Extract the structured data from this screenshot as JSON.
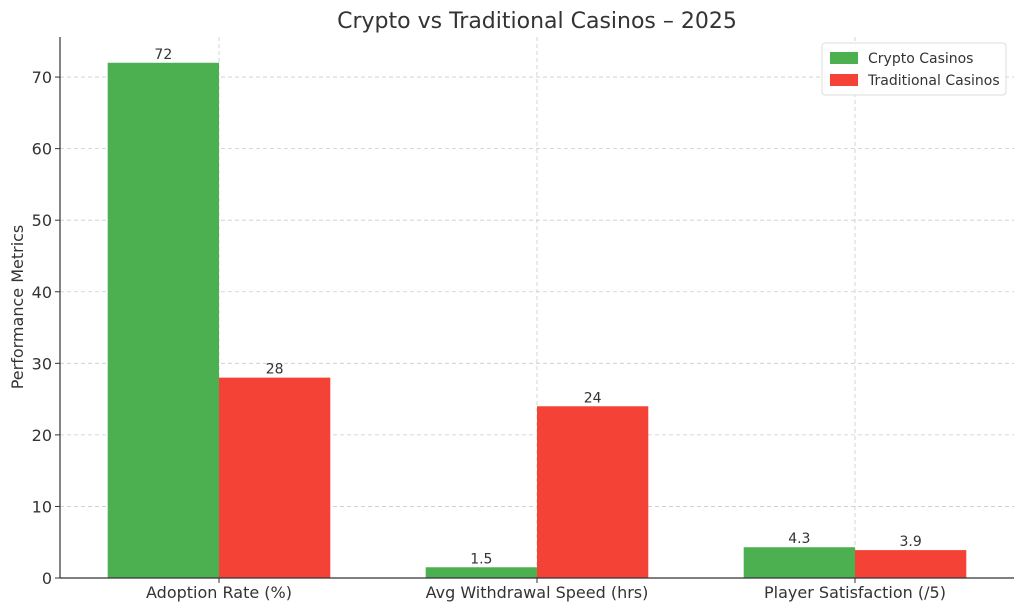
{
  "chart_data": {
    "type": "bar",
    "title": "Crypto vs Traditional Casinos – 2025",
    "xlabel": "",
    "ylabel": "Performance Metrics",
    "categories": [
      "Adoption Rate (%)",
      "Avg Withdrawal Speed (hrs)",
      "Player Satisfaction (/5)"
    ],
    "series": [
      {
        "name": "Crypto Casinos",
        "values": [
          72,
          1.5,
          4.3
        ],
        "labels": [
          "72",
          "1.5",
          "4.3"
        ],
        "color": "#4caf50"
      },
      {
        "name": "Traditional Casinos",
        "values": [
          28,
          24,
          3.9
        ],
        "labels": [
          "28",
          "24",
          "3.9"
        ],
        "color": "#f44336"
      }
    ],
    "ylim": [
      0,
      75.6
    ],
    "yticks": [
      0,
      10,
      20,
      30,
      40,
      50,
      60,
      70
    ],
    "grid": true,
    "legend_position": "top-right"
  }
}
